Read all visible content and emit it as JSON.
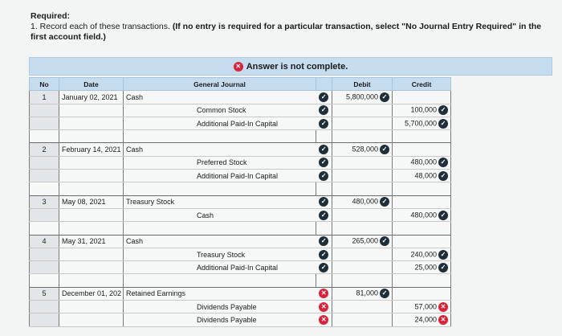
{
  "required": {
    "heading": "Required:",
    "line1_plain": "1. Record each of these transactions. ",
    "line1_bold": "(If no entry is required for a particular transaction, select \"No Journal Entry Required\" in the",
    "line2_bold": "first account field.)"
  },
  "banner": {
    "icon": "x-circle-icon",
    "text": "Answer is not complete."
  },
  "table": {
    "headers": {
      "no": "No",
      "date": "Date",
      "journal": "General Journal",
      "debit": "Debit",
      "credit": "Credit"
    },
    "entries": [
      {
        "no": "1",
        "lines": [
          {
            "date": "January 02, 2021",
            "account": "Cash",
            "indent": false,
            "status": "correct",
            "debit": "5,800,000",
            "debit_status": "correct",
            "credit": "",
            "credit_status": ""
          },
          {
            "date": "",
            "account": "Common Stock",
            "indent": true,
            "status": "correct",
            "debit": "",
            "debit_status": "",
            "credit": "100,000",
            "credit_status": "correct"
          },
          {
            "date": "",
            "account": "Additional Paid-In Capital",
            "indent": true,
            "status": "correct",
            "debit": "",
            "debit_status": "",
            "credit": "5,700,000",
            "credit_status": "correct"
          }
        ]
      },
      {
        "no": "2",
        "lines": [
          {
            "date": "February 14, 2021",
            "account": "Cash",
            "indent": false,
            "status": "correct",
            "debit": "528,000",
            "debit_status": "correct",
            "credit": "",
            "credit_status": ""
          },
          {
            "date": "",
            "account": "Preferred Stock",
            "indent": true,
            "status": "correct",
            "debit": "",
            "debit_status": "",
            "credit": "480,000",
            "credit_status": "correct"
          },
          {
            "date": "",
            "account": "Additional Paid-In Capital",
            "indent": true,
            "status": "correct",
            "debit": "",
            "debit_status": "",
            "credit": "48,000",
            "credit_status": "correct"
          }
        ]
      },
      {
        "no": "3",
        "lines": [
          {
            "date": "May 08, 2021",
            "account": "Treasury Stock",
            "indent": false,
            "status": "correct",
            "debit": "480,000",
            "debit_status": "correct",
            "credit": "",
            "credit_status": ""
          },
          {
            "date": "",
            "account": "Cash",
            "indent": true,
            "status": "correct",
            "debit": "",
            "debit_status": "",
            "credit": "480,000",
            "credit_status": "correct"
          }
        ]
      },
      {
        "no": "4",
        "lines": [
          {
            "date": "May 31, 2021",
            "account": "Cash",
            "indent": false,
            "status": "correct",
            "debit": "265,000",
            "debit_status": "correct",
            "credit": "",
            "credit_status": ""
          },
          {
            "date": "",
            "account": "Treasury Stock",
            "indent": true,
            "status": "correct",
            "debit": "",
            "debit_status": "",
            "credit": "240,000",
            "credit_status": "correct"
          },
          {
            "date": "",
            "account": "Additional Paid-In Capital",
            "indent": true,
            "status": "correct",
            "debit": "",
            "debit_status": "",
            "credit": "25,000",
            "credit_status": "correct"
          }
        ]
      },
      {
        "no": "5",
        "lines": [
          {
            "date": "December 01, 202",
            "account": "Retained Earnings",
            "indent": false,
            "status": "incorrect",
            "debit": "81,000",
            "debit_status": "correct",
            "credit": "",
            "credit_status": ""
          },
          {
            "date": "",
            "account": "Dividends Payable",
            "indent": true,
            "status": "incorrect",
            "debit": "",
            "debit_status": "",
            "credit": "57,000",
            "credit_status": "incorrect"
          },
          {
            "date": "",
            "account": "Dividends Payable",
            "indent": true,
            "status": "incorrect",
            "debit": "",
            "debit_status": "",
            "credit": "24,000",
            "credit_status": "incorrect"
          }
        ]
      }
    ]
  },
  "icons": {
    "correct": "check-circle-icon",
    "incorrect": "x-circle-icon"
  },
  "colors": {
    "header_bg": "#c5dbee",
    "correct": "#1f2f3a",
    "incorrect": "#d8233a"
  }
}
